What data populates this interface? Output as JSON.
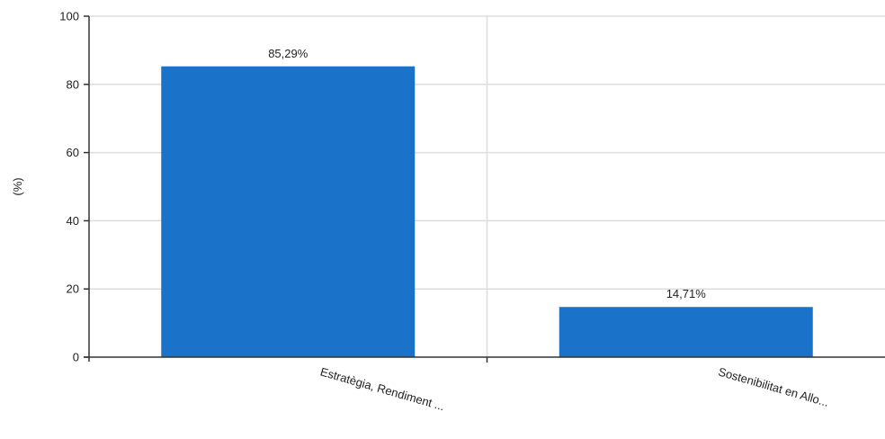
{
  "chart_data": {
    "type": "bar",
    "categories": [
      "Estratègia, Rendiment ...",
      "Sostenibilitat en Allo..."
    ],
    "values": [
      85.29,
      14.71
    ],
    "data_labels": [
      "85,29%",
      "14,71%"
    ],
    "title": "",
    "xlabel": "",
    "ylabel": "(%)",
    "ylim": [
      0,
      100
    ],
    "yticks": [
      0,
      20,
      40,
      60,
      80,
      100
    ],
    "ytick_labels": [
      "0",
      "20",
      "40",
      "60",
      "80",
      "100"
    ],
    "grid": true,
    "legend": "none",
    "colors": {
      "bar": "#1a73c9",
      "grid": "#dddddd",
      "axis": "#333333"
    }
  }
}
